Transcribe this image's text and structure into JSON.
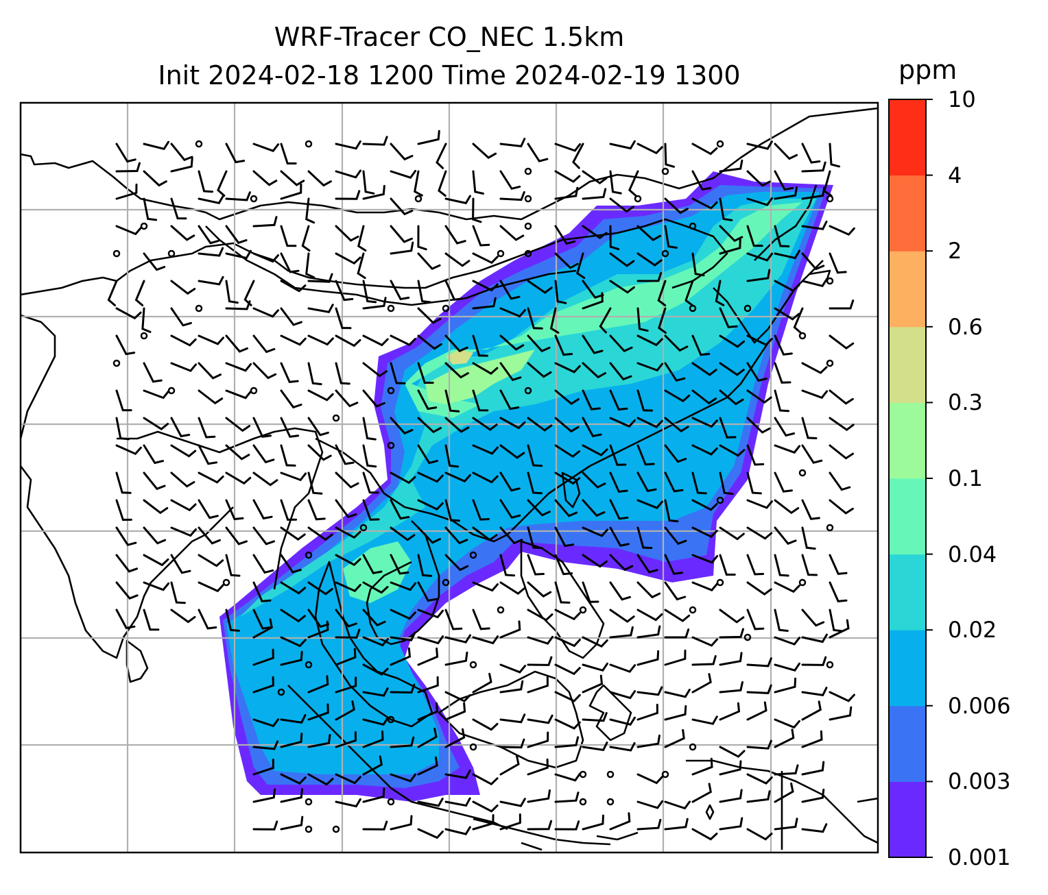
{
  "title": {
    "line1": "WRF-Tracer CO_NEC 1.5km",
    "line2": "Init 2024-02-18 1200 Time 2024-02-19 1300"
  },
  "colorbar": {
    "unit": "ppm",
    "levels": [
      "0.001",
      "0.003",
      "0.006",
      "0.02",
      "0.04",
      "0.1",
      "0.3",
      "0.6",
      "2",
      "4",
      "10"
    ],
    "colors": [
      "#6a2aff",
      "#3a74f5",
      "#07b0ec",
      "#2ad7d6",
      "#66f7b8",
      "#9cfa9a",
      "#d3e089",
      "#fdb060",
      "#ff6e3a",
      "#ff2e17"
    ]
  },
  "map": {
    "gridlines": true,
    "land_outline_color": "#000000",
    "grid_color": "#b0b0b0"
  }
}
